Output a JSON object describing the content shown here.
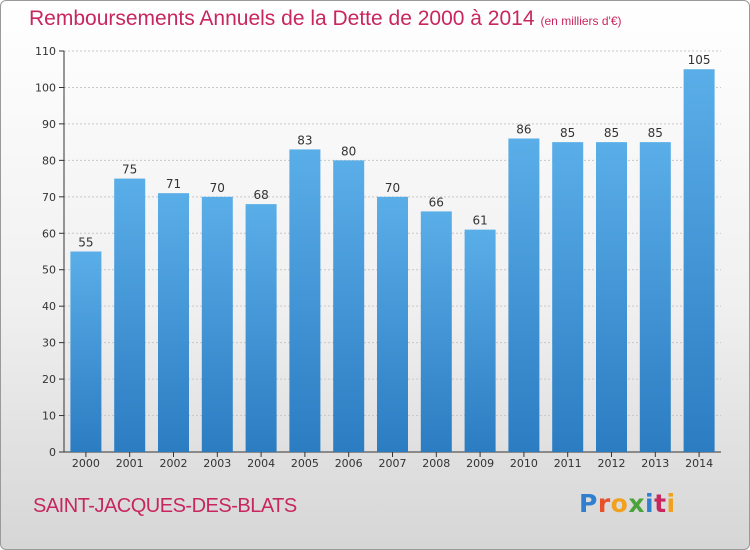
{
  "header": {
    "title": "Remboursements Annuels de la Dette de 2000 à 2014",
    "subtitle": "(en milliers d'€)"
  },
  "footer": {
    "commune": "SAINT-JACQUES-DES-BLATS",
    "logo_letters": [
      {
        "ch": "P",
        "color": "#2e7fd0"
      },
      {
        "ch": "r",
        "color": "#e8522b"
      },
      {
        "ch": "o",
        "color": "#f2a11f"
      },
      {
        "ch": "x",
        "color": "#4aa43a"
      },
      {
        "ch": "i",
        "color": "#2e7fd0"
      },
      {
        "ch": "t",
        "color": "#c8265f"
      },
      {
        "ch": "i",
        "color": "#f2a11f"
      }
    ]
  },
  "colors": {
    "bar_top": "#5aaee8",
    "bar_bottom": "#2c7cc2",
    "grid": "#c8c8c8",
    "axis": "#333333",
    "title": "#c8265f"
  },
  "chart_data": {
    "type": "bar",
    "categories": [
      "2000",
      "2001",
      "2002",
      "2003",
      "2004",
      "2005",
      "2006",
      "2007",
      "2008",
      "2009",
      "2010",
      "2011",
      "2012",
      "2013",
      "2014"
    ],
    "values": [
      55,
      75,
      71,
      70,
      68,
      83,
      80,
      70,
      66,
      61,
      86,
      85,
      85,
      85,
      105
    ],
    "ylim": [
      0,
      110
    ],
    "yticks": [
      0,
      10,
      20,
      30,
      40,
      50,
      60,
      70,
      80,
      90,
      100,
      110
    ],
    "grid": true
  }
}
